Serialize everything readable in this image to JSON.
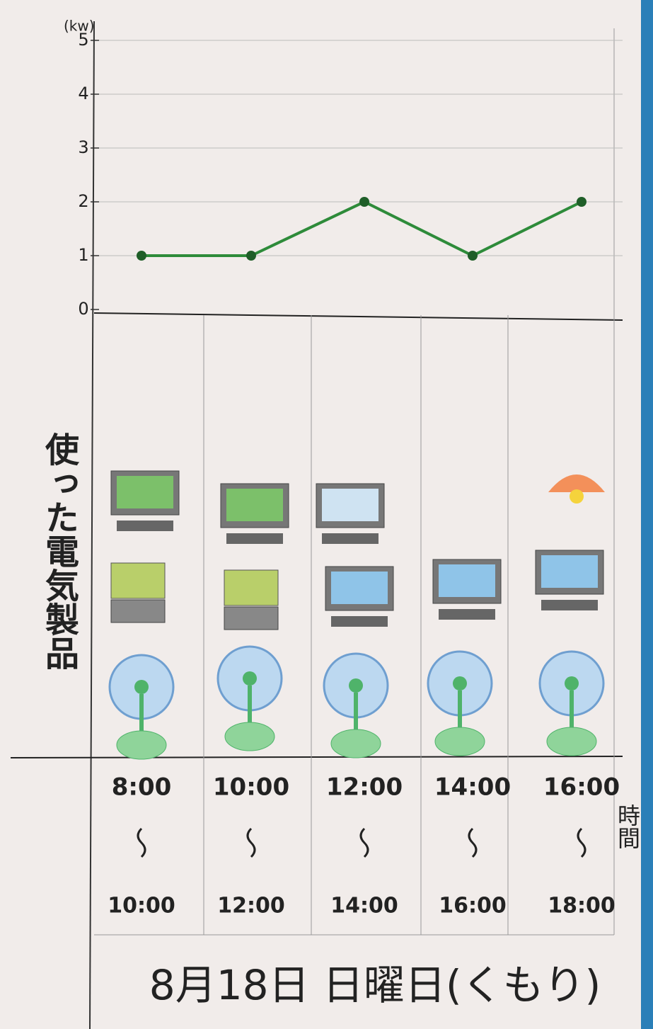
{
  "chart_data": {
    "type": "line",
    "y_label": "(kw)",
    "side_label": "使った電気製品",
    "x_label": "時間",
    "caption": "8月18日 日曜日(くもり)",
    "categories": [
      "8:00",
      "10:00",
      "12:00",
      "14:00",
      "16:00"
    ],
    "categories_end": [
      "10:00",
      "12:00",
      "14:00",
      "16:00",
      "18:00"
    ],
    "series": [
      {
        "name": null,
        "color": "#2e8b3a",
        "values": [
          1,
          1,
          2,
          1,
          2
        ]
      }
    ],
    "ylim": [
      0,
      5
    ],
    "yticks": [
      0,
      1,
      2,
      3,
      4,
      5
    ],
    "grid": true
  }
}
